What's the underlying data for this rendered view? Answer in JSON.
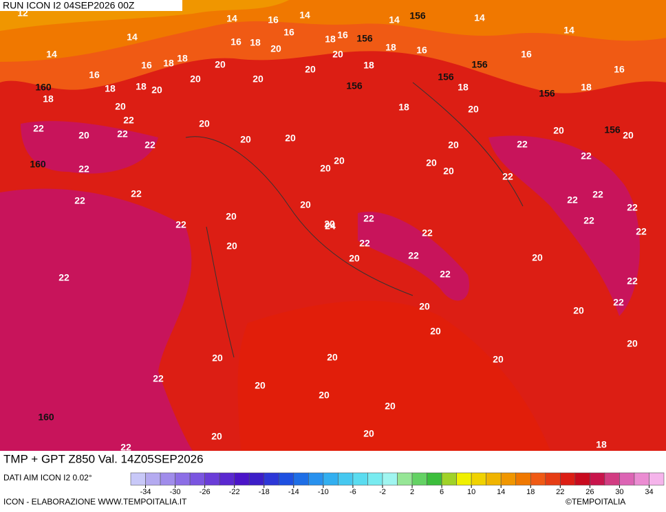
{
  "header": {
    "title": "RUN ICON I2 04SEP2026 00Z"
  },
  "map": {
    "labels": [
      12,
      14,
      14,
      14,
      14,
      14,
      14,
      14,
      156,
      156,
      156,
      156,
      156,
      156,
      156,
      160,
      160,
      160,
      16,
      16,
      16,
      16,
      16,
      16,
      16,
      16,
      16,
      18,
      18,
      18,
      18,
      18,
      18,
      18,
      18,
      18,
      18,
      18,
      18,
      18,
      20,
      20,
      20,
      20,
      20,
      20,
      20,
      20,
      20,
      20,
      20,
      20,
      20,
      20,
      20,
      20,
      20,
      20,
      20,
      20,
      20,
      20,
      20,
      20,
      20,
      20,
      20,
      20,
      20,
      20,
      20,
      20,
      20,
      20,
      20,
      20,
      20,
      20,
      22,
      22,
      22,
      22,
      22,
      22,
      22,
      22,
      22,
      22,
      22,
      22,
      22,
      22,
      22,
      22,
      22,
      22,
      22,
      22,
      22,
      22,
      22,
      22,
      22,
      22,
      24,
      24
    ]
  },
  "footer": {
    "title": "TMP + GPT Z850 Val. 14Z05SEP2026",
    "source": "DATI AIM ICON I2 0.02°",
    "credit": "ICON - ELABORAZIONE WWW.TEMPOITALIA.IT",
    "copyright": "©TEMPOITALIA"
  },
  "colorbar": {
    "colors": [
      "#c8c8f8",
      "#b4aaf0",
      "#a08ceb",
      "#8c6ee6",
      "#7a55e0",
      "#6a3cd8",
      "#5a28d0",
      "#4b14c8",
      "#3c1ec8",
      "#2d37d7",
      "#1e50e1",
      "#1e6ee6",
      "#2891ee",
      "#32aff0",
      "#46c8f0",
      "#5adcf0",
      "#78ebf0",
      "#a0f5f0",
      "#96e696",
      "#64d264",
      "#3cbe3c",
      "#a0d228",
      "#f0f000",
      "#f0d200",
      "#f0b400",
      "#f09600",
      "#f07800",
      "#f05a14",
      "#e63c14",
      "#dc1e14",
      "#c80a1e",
      "#c8144b",
      "#d23c82",
      "#dc64b4",
      "#eb8cd2",
      "#f5b4eb"
    ],
    "ticks": [
      -34,
      -30,
      -26,
      -22,
      -18,
      -14,
      -10,
      -6,
      -2,
      2,
      6,
      10,
      14,
      18,
      22,
      26,
      30,
      34
    ]
  }
}
